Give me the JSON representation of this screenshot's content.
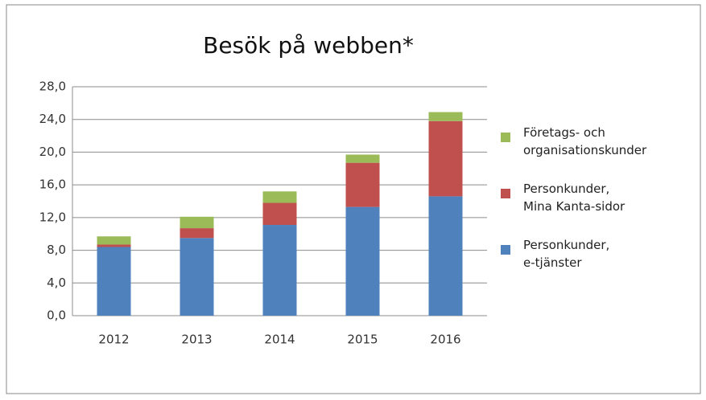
{
  "chart_data": {
    "type": "stacked_bar",
    "title": "Besök på webben*",
    "categories": [
      "2012",
      "2013",
      "2014",
      "2015",
      "2016"
    ],
    "series": [
      {
        "name": "Personkunder,\ne-tjänster",
        "color": "#4f81bd",
        "values": [
          8.4,
          9.5,
          11.1,
          13.3,
          14.6
        ]
      },
      {
        "name": "Personkunder,\nMina Kanta-sidor",
        "color": "#c0504d",
        "values": [
          0.3,
          1.2,
          2.7,
          5.4,
          9.2
        ]
      },
      {
        "name": "Företags- och\norganisationskunder",
        "color": "#9bbb59",
        "values": [
          1.0,
          1.4,
          1.4,
          1.0,
          1.1
        ]
      }
    ],
    "ylim": [
      0,
      28
    ],
    "yticks": [
      {
        "value": 0,
        "label": "0,0"
      },
      {
        "value": 4,
        "label": "4,0"
      },
      {
        "value": 8,
        "label": "8,0"
      },
      {
        "value": 12,
        "label": "12,0"
      },
      {
        "value": 16,
        "label": "16,0"
      },
      {
        "value": 20,
        "label": "20,0"
      },
      {
        "value": 24,
        "label": "24,0"
      },
      {
        "value": 28,
        "label": "28,0"
      }
    ],
    "grid": true,
    "legend": "right"
  }
}
